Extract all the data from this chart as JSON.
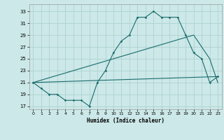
{
  "xlabel": "Humidex (Indice chaleur)",
  "bg_color": "#cce8e8",
  "grid_color": "#aacece",
  "line_color": "#1a6b6b",
  "xlim": [
    -0.5,
    23.5
  ],
  "ylim": [
    16.5,
    34.2
  ],
  "yticks": [
    17,
    19,
    21,
    23,
    25,
    27,
    29,
    31,
    33
  ],
  "xticks": [
    0,
    1,
    2,
    3,
    4,
    5,
    6,
    7,
    8,
    9,
    10,
    11,
    12,
    13,
    14,
    15,
    16,
    17,
    18,
    19,
    20,
    21,
    22,
    23
  ],
  "line1_x": [
    0,
    1,
    2,
    3,
    4,
    5,
    6,
    7,
    8,
    9,
    10,
    11,
    12,
    13,
    14,
    15,
    16,
    17,
    18,
    19,
    20,
    21,
    22,
    23
  ],
  "line1_y": [
    21,
    20,
    19,
    19,
    18,
    18,
    18,
    17,
    21,
    23,
    26,
    28,
    29,
    32,
    32,
    33,
    32,
    32,
    32,
    29,
    26,
    25,
    21,
    22
  ],
  "line2_x": [
    0,
    20,
    22,
    23
  ],
  "line2_y": [
    21,
    29,
    25,
    21
  ],
  "line3_x": [
    0,
    23
  ],
  "line3_y": [
    21,
    22
  ]
}
